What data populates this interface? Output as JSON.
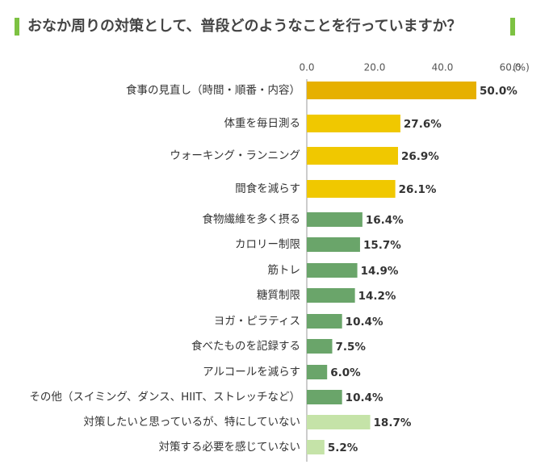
{
  "chart_data": {
    "type": "bar",
    "orientation": "horizontal",
    "title": "おなか周りの対策として、普段どのようなことを行っていますか？",
    "x_unit": "(%)",
    "categories": [
      "食事の見直し（時間・順番・内容）",
      "体重を毎日測る",
      "ウォーキング・ランニング",
      "間食を減らす",
      "食物繊維を多く摂る",
      "カロリー制限",
      "筋トレ",
      "糖質制限",
      "ヨガ・ピラティス",
      "食べたものを記録する",
      "アルコールを減らす",
      "その他（スイミング、ダンス、HIIT、ストレッチなど）",
      "対策したいと思っているが、特にしていない",
      "対策する必要を感じていない"
    ],
    "values": [
      50.0,
      27.6,
      26.9,
      26.1,
      16.4,
      15.7,
      14.9,
      14.2,
      10.4,
      7.5,
      6.0,
      10.4,
      18.7,
      5.2
    ],
    "value_labels": [
      "50.0%",
      "27.6%",
      "26.9%",
      "26.1%",
      "16.4%",
      "15.7%",
      "14.9%",
      "14.2%",
      "10.4%",
      "7.5%",
      "6.0%",
      "10.4%",
      "18.7%",
      "5.2%"
    ],
    "colors": [
      "#e6b000",
      "#f0c800",
      "#f0c800",
      "#f0c800",
      "#6aa56a",
      "#6aa56a",
      "#6aa56a",
      "#6aa56a",
      "#6aa56a",
      "#6aa56a",
      "#6aa56a",
      "#6aa56a",
      "#c5e3a8",
      "#c5e3a8"
    ],
    "xlim": [
      0,
      60
    ],
    "xticks": [
      {
        "value": 0,
        "label": "0.0"
      },
      {
        "value": 20,
        "label": "20.0"
      },
      {
        "value": 40,
        "label": "40.0"
      },
      {
        "value": 60,
        "label": "60.0"
      }
    ],
    "grid": false
  }
}
